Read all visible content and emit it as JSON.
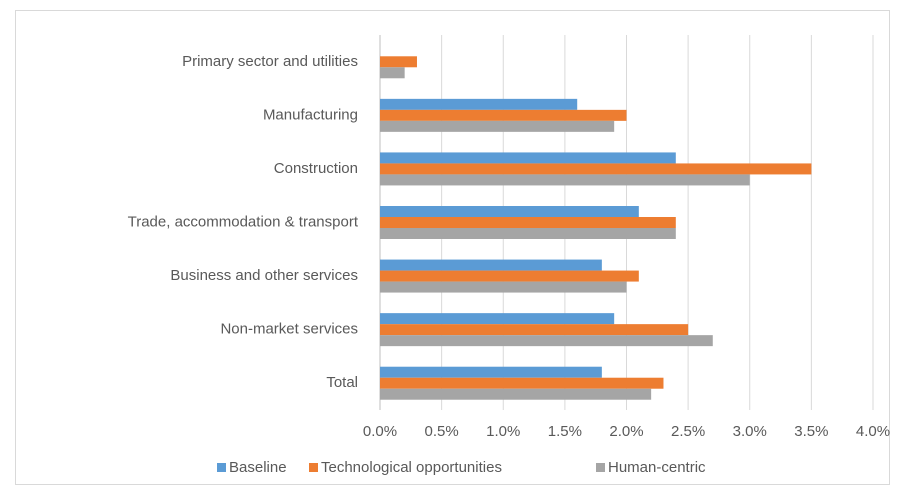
{
  "chart_data": {
    "type": "hbar",
    "categories": [
      "Primary sector and utilities",
      "Manufacturing",
      "Construction",
      "Trade, accommodation & transport",
      "Business and other services",
      "Non-market services",
      "Total"
    ],
    "series": [
      {
        "name": "Baseline",
        "color": "#5b9bd5",
        "values": [
          0,
          1.6,
          2.4,
          2.1,
          1.8,
          1.9,
          1.8
        ]
      },
      {
        "name": "Technological opportunities",
        "color": "#ed7d31",
        "values": [
          0.3,
          2.0,
          3.5,
          2.4,
          2.1,
          2.5,
          2.3
        ]
      },
      {
        "name": "Human-centric",
        "color": "#a5a5a5",
        "values": [
          0.2,
          1.9,
          3.0,
          2.4,
          2.0,
          2.7,
          2.2
        ]
      }
    ],
    "xlim": [
      0,
      4
    ],
    "xticks": [
      {
        "value": 0,
        "label": "0.0%"
      },
      {
        "value": 0.5,
        "label": "0.5%"
      },
      {
        "value": 1,
        "label": "1.0%"
      },
      {
        "value": 1.5,
        "label": "1.5%"
      },
      {
        "value": 2,
        "label": "2.0%"
      },
      {
        "value": 2.5,
        "label": "2.5%"
      },
      {
        "value": 3,
        "label": "3.0%"
      },
      {
        "value": 3.5,
        "label": "3.5%"
      },
      {
        "value": 4,
        "label": "4.0%"
      }
    ],
    "grid": true,
    "legend": "bottom"
  }
}
